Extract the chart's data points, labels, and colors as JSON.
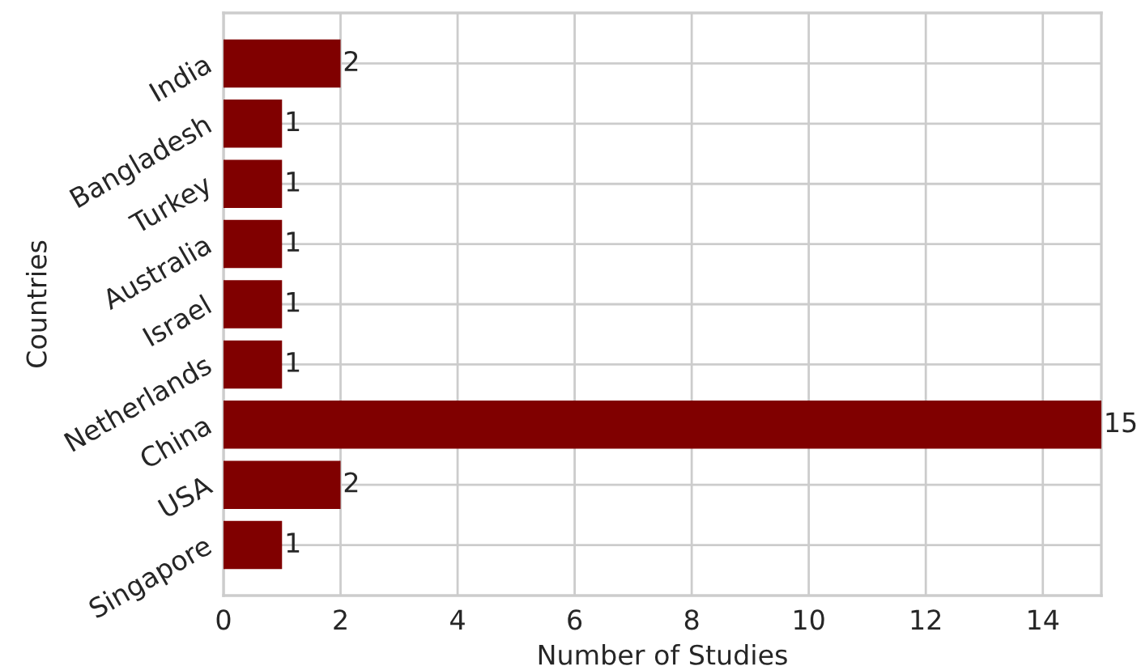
{
  "chart_data": {
    "type": "bar",
    "orientation": "horizontal",
    "xlabel": "Number of Studies",
    "ylabel": "Countries",
    "categories": [
      "India",
      "Bangladesh",
      "Turkey",
      "Australia",
      "Israel",
      "Netherlands",
      "China",
      "USA",
      "Singapore"
    ],
    "values": [
      2,
      1,
      1,
      1,
      1,
      1,
      15,
      2,
      1
    ],
    "color": "#800000",
    "xlim": [
      0,
      15
    ],
    "xticks": [
      0,
      2,
      4,
      6,
      8,
      10,
      12,
      14
    ],
    "grid": true,
    "data_labels": true
  }
}
